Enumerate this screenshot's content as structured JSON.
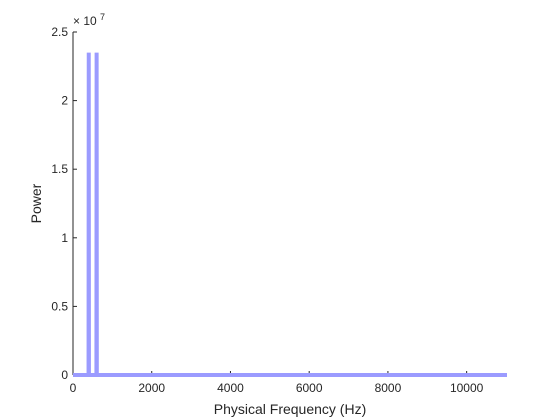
{
  "chart_data": {
    "type": "line",
    "title": "",
    "xlabel": "Physical Frequency (Hz)",
    "ylabel": "Power",
    "xlim": [
      0,
      11025
    ],
    "ylim": [
      0,
      25000000
    ],
    "x_ticks": [
      0,
      2000,
      4000,
      6000,
      8000,
      10000
    ],
    "x_tick_labels": [
      "0",
      "2000",
      "4000",
      "6000",
      "8000",
      "10000"
    ],
    "y_ticks": [
      0,
      5000000,
      10000000,
      15000000,
      20000000,
      25000000
    ],
    "y_tick_labels": [
      "0",
      "0.5",
      "1",
      "1.5",
      "2",
      "2.5"
    ],
    "y_exponent": {
      "base_text": "× 10",
      "power_text": "7"
    },
    "grid": false,
    "legend": "none",
    "series": [
      {
        "color": "#9b9bff",
        "x": [
          0,
          300,
          395,
          400,
          405,
          595,
          600,
          605,
          700,
          11025
        ],
        "y": [
          0,
          0,
          0,
          23500000,
          0,
          0,
          23500000,
          0,
          0,
          0
        ]
      }
    ]
  }
}
